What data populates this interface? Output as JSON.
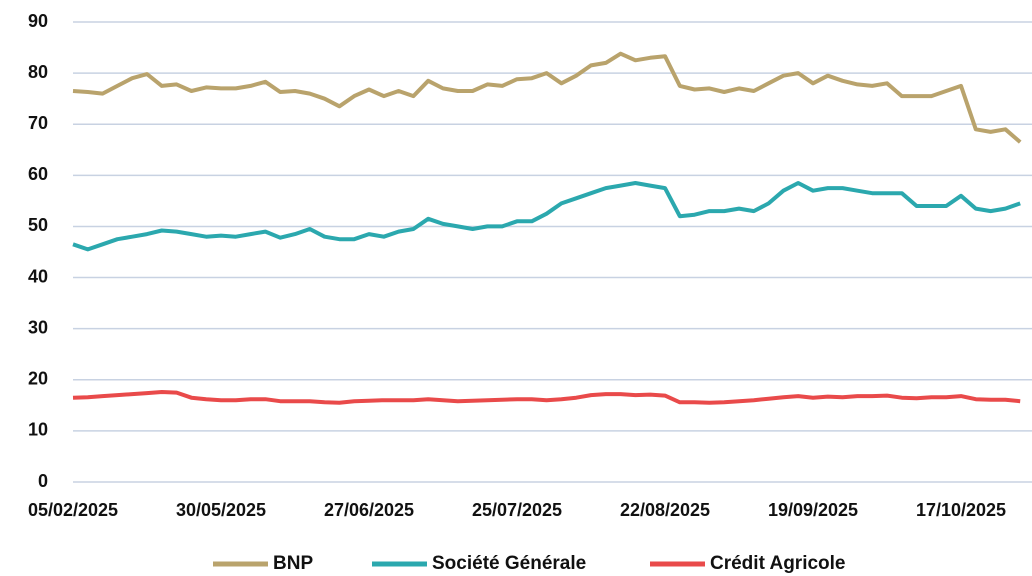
{
  "chart_data": {
    "type": "line",
    "categories": [
      "05/02/2025",
      null,
      null,
      null,
      null,
      null,
      null,
      null,
      null,
      null,
      "30/05/2025",
      null,
      null,
      null,
      null,
      null,
      null,
      null,
      null,
      null,
      "27/06/2025",
      null,
      null,
      null,
      null,
      null,
      null,
      null,
      null,
      null,
      "25/07/2025",
      null,
      null,
      null,
      null,
      null,
      null,
      null,
      null,
      null,
      "22/08/2025",
      null,
      null,
      null,
      null,
      null,
      null,
      null,
      null,
      null,
      "19/09/2025",
      null,
      null,
      null,
      null,
      null,
      null,
      null,
      null,
      null,
      "17/10/2025",
      null,
      null,
      null,
      null
    ],
    "series": [
      {
        "name": "BNP",
        "color": "#b9a36c",
        "values": [
          76.5,
          76.3,
          76,
          77.5,
          79,
          79.8,
          77.5,
          77.8,
          76.5,
          77.2,
          77,
          77,
          77.5,
          78.3,
          76.3,
          76.5,
          76,
          75,
          73.5,
          75.5,
          76.8,
          75.5,
          76.5,
          75.5,
          78.5,
          77,
          76.5,
          76.5,
          77.8,
          77.5,
          78.8,
          79,
          80,
          78,
          79.5,
          81.5,
          82,
          83.8,
          82.5,
          83,
          83.3,
          77.5,
          76.8,
          77,
          76.3,
          77,
          76.5,
          78,
          79.5,
          80,
          78,
          79.5,
          78.5,
          77.8,
          77.5,
          78,
          75.5,
          75.5,
          75.5,
          76.5,
          77.5,
          69,
          68.5,
          69,
          66.5
        ]
      },
      {
        "name": "Société Générale",
        "color": "#2ba8ae",
        "values": [
          46.5,
          45.5,
          46.5,
          47.5,
          48,
          48.5,
          49.2,
          49,
          48.5,
          48,
          48.2,
          48,
          48.5,
          49,
          47.8,
          48.5,
          49.5,
          48,
          47.5,
          47.5,
          48.5,
          48,
          49,
          49.5,
          51.5,
          50.5,
          50,
          49.5,
          50,
          50,
          51,
          51,
          52.5,
          54.5,
          55.5,
          56.5,
          57.5,
          58,
          58.5,
          58,
          57.5,
          52,
          52.3,
          53,
          53,
          53.5,
          53,
          54.5,
          57,
          58.5,
          57,
          57.5,
          57.5,
          57,
          56.5,
          56.5,
          56.5,
          54,
          54,
          54,
          56,
          53.5,
          53,
          53.5,
          54.5
        ]
      },
      {
        "name": "Crédit Agricole",
        "color": "#e94a4a",
        "values": [
          16.5,
          16.6,
          16.8,
          17,
          17.2,
          17.4,
          17.6,
          17.5,
          16.5,
          16.2,
          16,
          16,
          16.2,
          16.2,
          15.8,
          15.8,
          15.8,
          15.6,
          15.5,
          15.8,
          15.9,
          16,
          16,
          16,
          16.2,
          16,
          15.8,
          15.9,
          16,
          16.1,
          16.2,
          16.2,
          16,
          16.2,
          16.5,
          17,
          17.2,
          17.2,
          17,
          17.1,
          16.9,
          15.6,
          15.6,
          15.5,
          15.6,
          15.8,
          16,
          16.3,
          16.6,
          16.8,
          16.5,
          16.7,
          16.6,
          16.8,
          16.8,
          16.9,
          16.5,
          16.4,
          16.6,
          16.6,
          16.8,
          16.2,
          16.1,
          16.1,
          15.8
        ]
      }
    ],
    "ylim": [
      0,
      90
    ],
    "yticks": [
      0,
      10,
      20,
      30,
      40,
      50,
      60,
      70,
      80,
      90
    ],
    "grid": true
  }
}
